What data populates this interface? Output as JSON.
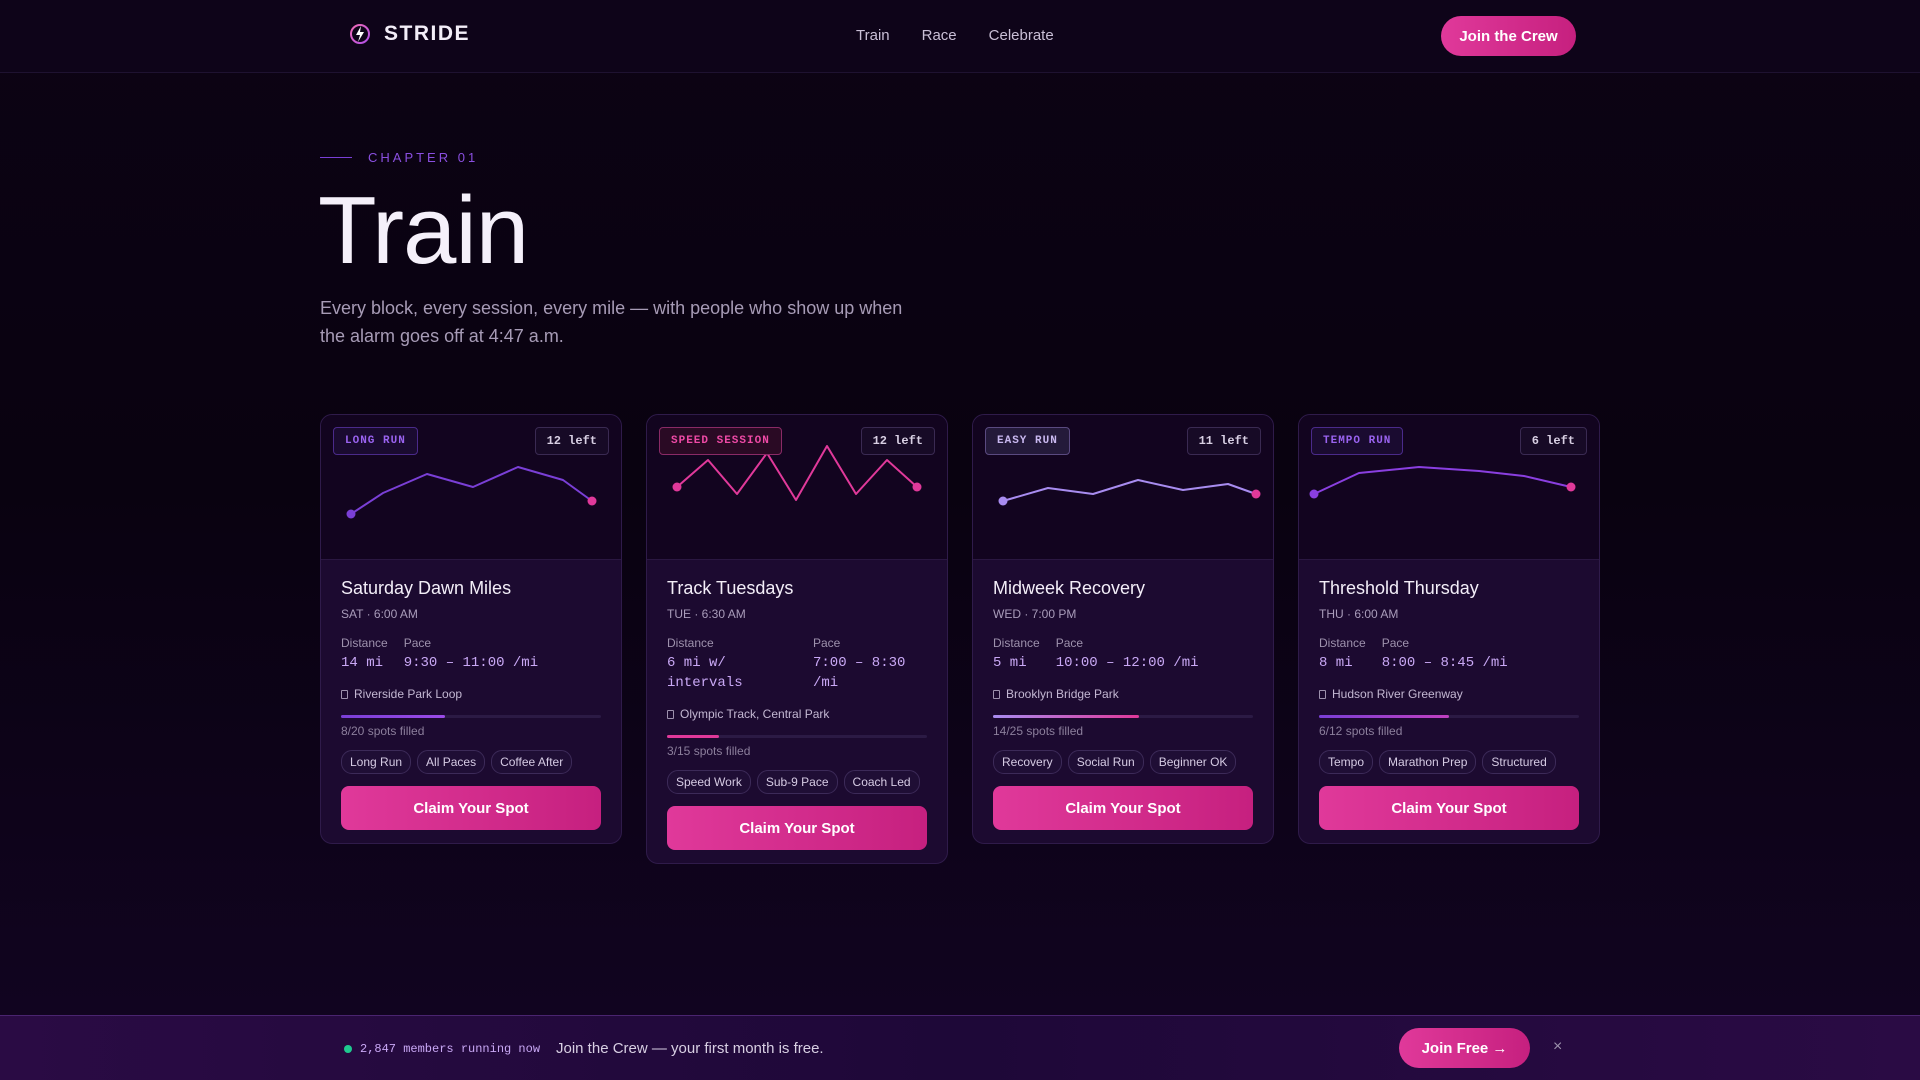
{
  "brand": {
    "name": "STRIDE",
    "icon": "lightning-bolt-icon"
  },
  "nav": {
    "links": [
      "Train",
      "Race",
      "Celebrate"
    ],
    "cta": "Join the Crew"
  },
  "hero": {
    "chapter": "CHAPTER 01",
    "title": "Train",
    "subtitle": "Every block, every session, every mile — with people who show up when the alarm goes off at 4:47 a.m."
  },
  "colors": {
    "accent_pink": "#e0399a",
    "accent_purple": "#7a3fd6",
    "live_green": "#1fc98f"
  },
  "cards": [
    {
      "badge": "LONG RUN",
      "spots_left": "12 left",
      "title": "Saturday Dawn Miles",
      "when": "SAT · 6:00 AM",
      "distance_label": "Distance",
      "distance": "14 mi",
      "pace_label": "Pace",
      "pace": "9:30 – 11:00 /mi",
      "location": "Riverside Park Loop",
      "filled_text": "8/20 spots filled",
      "filled_fraction": 0.4,
      "tags": [
        "Long Run",
        "All Paces",
        "Coffee After"
      ],
      "cta": "Claim Your Spot"
    },
    {
      "badge": "SPEED SESSION",
      "spots_left": "12 left",
      "title": "Track Tuesdays",
      "when": "TUE · 6:30 AM",
      "distance_label": "Distance",
      "distance": "6 mi w/ intervals",
      "pace_label": "Pace",
      "pace": "7:00 – 8:30 /mi",
      "location": "Olympic Track, Central Park",
      "filled_text": "3/15 spots filled",
      "filled_fraction": 0.2,
      "tags": [
        "Speed Work",
        "Sub-9 Pace",
        "Coach Led"
      ],
      "cta": "Claim Your Spot"
    },
    {
      "badge": "EASY RUN",
      "spots_left": "11 left",
      "title": "Midweek Recovery",
      "when": "WED · 7:00 PM",
      "distance_label": "Distance",
      "distance": "5 mi",
      "pace_label": "Pace",
      "pace": "10:00 – 12:00 /mi",
      "location": "Brooklyn Bridge Park",
      "filled_text": "14/25 spots filled",
      "filled_fraction": 0.56,
      "tags": [
        "Recovery",
        "Social Run",
        "Beginner OK"
      ],
      "cta": "Claim Your Spot"
    },
    {
      "badge": "TEMPO RUN",
      "spots_left": "6 left",
      "title": "Threshold Thursday",
      "when": "THU · 6:00 AM",
      "distance_label": "Distance",
      "distance": "8 mi",
      "pace_label": "Pace",
      "pace": "8:00 – 8:45 /mi",
      "location": "Hudson River Greenway",
      "filled_text": "6/12 spots filled",
      "filled_fraction": 0.5,
      "tags": [
        "Tempo",
        "Marathon Prep",
        "Structured"
      ],
      "cta": "Claim Your Spot"
    }
  ],
  "bottom_bar": {
    "live": "2,847 members running now",
    "offer": "Join the Crew — your first month is free.",
    "cta": "Join Free →",
    "close": "×"
  }
}
